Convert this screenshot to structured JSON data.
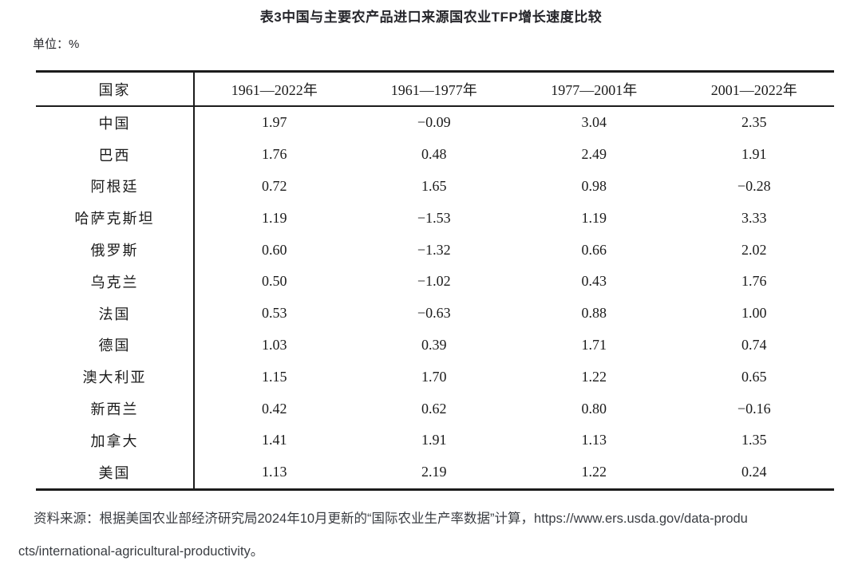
{
  "title": "表3中国与主要农产品进口来源国农业TFP增长速度比较",
  "unit_label": "单位：%",
  "table": {
    "columns": [
      "国家",
      "1961—2022年",
      "1961—1977年",
      "1977—2001年",
      "2001—2022年"
    ],
    "rows": [
      {
        "country": "中国",
        "values": [
          "1.97",
          "−0.09",
          "3.04",
          "2.35"
        ]
      },
      {
        "country": "巴西",
        "values": [
          "1.76",
          "0.48",
          "2.49",
          "1.91"
        ]
      },
      {
        "country": "阿根廷",
        "values": [
          "0.72",
          "1.65",
          "0.98",
          "−0.28"
        ]
      },
      {
        "country": "哈萨克斯坦",
        "values": [
          "1.19",
          "−1.53",
          "1.19",
          "3.33"
        ]
      },
      {
        "country": "俄罗斯",
        "values": [
          "0.60",
          "−1.32",
          "0.66",
          "2.02"
        ]
      },
      {
        "country": "乌克兰",
        "values": [
          "0.50",
          "−1.02",
          "0.43",
          "1.76"
        ]
      },
      {
        "country": "法国",
        "values": [
          "0.53",
          "−0.63",
          "0.88",
          "1.00"
        ]
      },
      {
        "country": "德国",
        "values": [
          "1.03",
          "0.39",
          "1.71",
          "0.74"
        ]
      },
      {
        "country": "澳大利亚",
        "values": [
          "1.15",
          "1.70",
          "1.22",
          "0.65"
        ]
      },
      {
        "country": "新西兰",
        "values": [
          "0.42",
          "0.62",
          "0.80",
          "−0.16"
        ]
      },
      {
        "country": "加拿大",
        "values": [
          "1.41",
          "1.91",
          "1.13",
          "1.35"
        ]
      },
      {
        "country": "美国",
        "values": [
          "1.13",
          "2.19",
          "1.22",
          "0.24"
        ]
      }
    ]
  },
  "source_note": {
    "line1": "资料来源：根据美国农业部经济研究局2024年10月更新的“国际农业生产率数据”计算，https://www.ers.usda.gov/data-produ",
    "line2": "cts/international-agricultural-productivity。",
    "full_url": "https://www.ers.usda.gov/data-products/international-agricultural-productivity"
  },
  "colors": {
    "background": "#ffffff",
    "table_text": "#1b1b1b",
    "table_rule": "#1c1c1c",
    "title_text": "#26262b",
    "source_text": "#3a3d42"
  }
}
